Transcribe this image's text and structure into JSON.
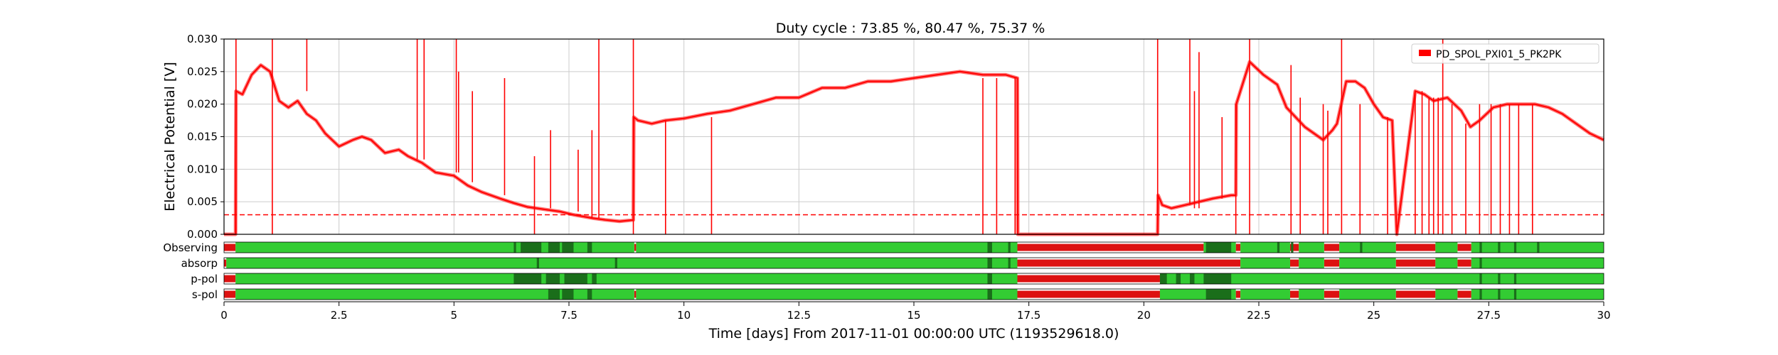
{
  "chart_data": {
    "type": "line",
    "title": "Duty cycle : 73.85 %, 80.47 %, 75.37 %",
    "xlabel": "Time [days] From 2017-11-01 00:00:00 UTC (1193529618.0)",
    "ylabel": "Electrical Potential [V]",
    "xlim": [
      0,
      30
    ],
    "ylim": [
      0,
      0.03
    ],
    "grid": true,
    "legend_position": "top-right",
    "xticks": [
      "0",
      "2.5",
      "5",
      "7.5",
      "10",
      "12.5",
      "15",
      "17.5",
      "20",
      "22.5",
      "25",
      "27.5",
      "30"
    ],
    "yticks": [
      "0.000",
      "0.005",
      "0.010",
      "0.015",
      "0.020",
      "0.025",
      "0.030"
    ],
    "threshold": {
      "value": 0.003,
      "style": "dashed",
      "color": "#ff0000"
    },
    "series": [
      {
        "name": "PD_SPOL_PXI01_5_PK2PK",
        "color": "#ff0000",
        "x": [
          0.0,
          0.25,
          0.26,
          0.4,
          0.6,
          0.8,
          1.0,
          1.2,
          1.4,
          1.6,
          1.8,
          2.0,
          2.2,
          2.5,
          2.8,
          3.0,
          3.2,
          3.5,
          3.8,
          4.0,
          4.3,
          4.6,
          5.0,
          5.3,
          5.6,
          6.0,
          6.3,
          6.6,
          7.0,
          7.3,
          7.6,
          8.0,
          8.3,
          8.6,
          8.9,
          8.91,
          9.0,
          9.3,
          9.6,
          10.0,
          10.5,
          11.0,
          11.5,
          12.0,
          12.5,
          13.0,
          13.5,
          14.0,
          14.5,
          15.0,
          15.5,
          16.0,
          16.5,
          17.0,
          17.25,
          17.26,
          18.0,
          19.0,
          20.0,
          20.3,
          20.31,
          20.4,
          20.6,
          20.9,
          21.2,
          21.5,
          21.9,
          22.0,
          22.01,
          22.3,
          22.6,
          22.9,
          23.1,
          23.3,
          23.5,
          23.7,
          23.9,
          24.1,
          24.2,
          24.4,
          24.6,
          24.8,
          25.0,
          25.2,
          25.4,
          25.5,
          25.9,
          26.1,
          26.3,
          26.6,
          26.9,
          27.1,
          27.3,
          27.6,
          27.9,
          28.2,
          28.5,
          28.8,
          29.1,
          29.4,
          29.7,
          30.0
        ],
        "y": [
          0.0,
          0.0,
          0.022,
          0.0215,
          0.0245,
          0.026,
          0.025,
          0.0205,
          0.0195,
          0.0205,
          0.0185,
          0.0175,
          0.0155,
          0.0135,
          0.0145,
          0.015,
          0.0145,
          0.0125,
          0.013,
          0.012,
          0.011,
          0.0095,
          0.009,
          0.0075,
          0.0065,
          0.0055,
          0.0048,
          0.0042,
          0.0038,
          0.0035,
          0.003,
          0.0025,
          0.0022,
          0.002,
          0.0022,
          0.018,
          0.0175,
          0.017,
          0.0175,
          0.0178,
          0.0185,
          0.019,
          0.02,
          0.021,
          0.021,
          0.0225,
          0.0225,
          0.0235,
          0.0235,
          0.024,
          0.0245,
          0.025,
          0.0245,
          0.0245,
          0.024,
          0.0,
          0.0,
          0.0,
          0.0,
          0.0,
          0.006,
          0.0045,
          0.004,
          0.0045,
          0.005,
          0.0055,
          0.006,
          0.006,
          0.02,
          0.0265,
          0.0245,
          0.023,
          0.0195,
          0.018,
          0.0165,
          0.0155,
          0.0145,
          0.016,
          0.017,
          0.0235,
          0.0235,
          0.0225,
          0.02,
          0.018,
          0.0175,
          0.0,
          0.022,
          0.0215,
          0.0205,
          0.021,
          0.019,
          0.0165,
          0.0175,
          0.0195,
          0.02,
          0.02,
          0.02,
          0.0195,
          0.0185,
          0.017,
          0.0155,
          0.0145
        ]
      }
    ],
    "spike_days": [
      0.26,
      1.05,
      1.8,
      4.2,
      4.35,
      5.05,
      5.1,
      5.4,
      6.1,
      6.75,
      7.1,
      7.7,
      8.0,
      8.15,
      8.9,
      9.6,
      10.6,
      16.5,
      16.8,
      17.2,
      20.3,
      21.0,
      21.1,
      21.2,
      21.7,
      22.0,
      22.3,
      23.2,
      23.4,
      23.9,
      24.0,
      24.3,
      24.7,
      25.3,
      25.9,
      26.05,
      26.2,
      26.3,
      26.4,
      26.5,
      26.7,
      27.0,
      27.3,
      27.55,
      27.75,
      27.95,
      28.15,
      28.45
    ],
    "spike_ranges": [
      [
        0.0,
        0.03
      ],
      [
        0.0,
        0.03
      ],
      [
        0.022,
        0.03
      ],
      [
        0.0115,
        0.03
      ],
      [
        0.0115,
        0.03
      ],
      [
        0.0095,
        0.03
      ],
      [
        0.0095,
        0.025
      ],
      [
        0.008,
        0.022
      ],
      [
        0.006,
        0.024
      ],
      [
        0.0,
        0.012
      ],
      [
        0.004,
        0.016
      ],
      [
        0.0035,
        0.013
      ],
      [
        0.0025,
        0.016
      ],
      [
        0.0025,
        0.03
      ],
      [
        0.0,
        0.03
      ],
      [
        0.0,
        0.0175
      ],
      [
        0.0,
        0.018
      ],
      [
        0.0,
        0.024
      ],
      [
        0.0,
        0.024
      ],
      [
        0.0,
        0.024
      ],
      [
        0.0,
        0.03
      ],
      [
        0.0045,
        0.03
      ],
      [
        0.004,
        0.022
      ],
      [
        0.004,
        0.028
      ],
      [
        0.0055,
        0.018
      ],
      [
        0.0,
        0.02
      ],
      [
        0.0,
        0.03
      ],
      [
        0.0,
        0.026
      ],
      [
        0.0,
        0.021
      ],
      [
        0.0,
        0.02
      ],
      [
        0.0,
        0.019
      ],
      [
        0.0,
        0.03
      ],
      [
        0.0,
        0.02
      ],
      [
        0.0,
        0.018
      ],
      [
        0.0,
        0.022
      ],
      [
        0.0,
        0.022
      ],
      [
        0.0,
        0.021
      ],
      [
        0.0,
        0.021
      ],
      [
        0.0,
        0.021
      ],
      [
        0.0,
        0.03
      ],
      [
        0.0,
        0.02
      ],
      [
        0.0,
        0.017
      ],
      [
        0.0,
        0.02
      ],
      [
        0.0,
        0.02
      ],
      [
        0.0,
        0.02
      ],
      [
        0.0,
        0.02
      ],
      [
        0.0,
        0.02
      ],
      [
        0.0,
        0.02
      ]
    ],
    "segments": [
      {
        "label": "Observing",
        "active": [
          [
            0.25,
            8.92
          ],
          [
            8.96,
            17.25
          ],
          [
            21.3,
            22.0
          ],
          [
            22.1,
            23.18
          ],
          [
            23.37,
            23.92
          ],
          [
            24.25,
            25.48
          ],
          [
            26.34,
            26.82
          ],
          [
            27.12,
            30.0
          ]
        ],
        "dark_ranges": [
          [
            6.3,
            6.35
          ],
          [
            6.45,
            6.9
          ],
          [
            7.05,
            7.3
          ],
          [
            7.35,
            7.6
          ],
          [
            7.9,
            8.0
          ],
          [
            16.6,
            16.7
          ],
          [
            17.05,
            17.1
          ],
          [
            21.35,
            21.9
          ],
          [
            22.9,
            22.95
          ],
          [
            23.2,
            23.25
          ],
          [
            24.7,
            24.75
          ],
          [
            27.3,
            27.35
          ],
          [
            27.7,
            27.75
          ],
          [
            28.05,
            28.1
          ],
          [
            28.55,
            28.6
          ]
        ],
        "off_ranges": [
          [
            0.0,
            0.25
          ],
          [
            8.92,
            8.96
          ],
          [
            17.25,
            21.3
          ],
          [
            22.0,
            22.1
          ],
          [
            23.18,
            23.37
          ],
          [
            23.92,
            24.25
          ],
          [
            25.48,
            26.34
          ],
          [
            26.82,
            27.12
          ]
        ]
      },
      {
        "label": "absorp",
        "active": [
          [
            0.05,
            17.25
          ],
          [
            22.1,
            23.18
          ],
          [
            23.37,
            23.92
          ],
          [
            24.25,
            25.48
          ],
          [
            26.34,
            26.82
          ],
          [
            27.12,
            30.0
          ]
        ],
        "dark_ranges": [
          [
            6.8,
            6.85
          ],
          [
            8.5,
            8.55
          ],
          [
            16.6,
            16.7
          ],
          [
            17.05,
            17.1
          ],
          [
            27.3,
            27.35
          ]
        ],
        "off_ranges": [
          [
            0.0,
            0.05
          ],
          [
            17.25,
            22.1
          ],
          [
            23.18,
            23.37
          ],
          [
            23.92,
            24.25
          ],
          [
            25.48,
            26.34
          ],
          [
            26.82,
            27.12
          ]
        ]
      },
      {
        "label": "p-pol",
        "active": [
          [
            0.25,
            17.25
          ],
          [
            20.35,
            30.0
          ]
        ],
        "dark_ranges": [
          [
            6.3,
            6.9
          ],
          [
            7.0,
            7.3
          ],
          [
            7.4,
            7.9
          ],
          [
            8.0,
            8.1
          ],
          [
            16.6,
            16.7
          ],
          [
            20.35,
            20.5
          ],
          [
            20.7,
            20.8
          ],
          [
            21.0,
            21.1
          ],
          [
            21.3,
            21.9
          ],
          [
            27.3,
            27.35
          ],
          [
            27.7,
            27.75
          ],
          [
            28.05,
            28.1
          ]
        ],
        "off_ranges": [
          [
            0.0,
            0.25
          ],
          [
            17.25,
            20.35
          ]
        ]
      },
      {
        "label": "s-pol",
        "active": [
          [
            0.25,
            8.92
          ],
          [
            8.96,
            17.25
          ],
          [
            20.35,
            22.0
          ],
          [
            22.1,
            23.18
          ],
          [
            23.37,
            23.92
          ],
          [
            24.25,
            25.48
          ],
          [
            26.34,
            26.82
          ],
          [
            27.12,
            30.0
          ]
        ],
        "dark_ranges": [
          [
            7.05,
            7.3
          ],
          [
            7.35,
            7.6
          ],
          [
            7.9,
            8.0
          ],
          [
            16.6,
            16.7
          ],
          [
            21.35,
            21.9
          ],
          [
            27.3,
            27.35
          ],
          [
            27.7,
            27.75
          ],
          [
            28.05,
            28.1
          ]
        ],
        "off_ranges": [
          [
            0.0,
            0.25
          ],
          [
            8.92,
            8.96
          ],
          [
            17.25,
            20.35
          ],
          [
            22.0,
            22.1
          ],
          [
            23.18,
            23.37
          ],
          [
            23.92,
            24.25
          ],
          [
            25.48,
            26.34
          ],
          [
            26.82,
            27.12
          ]
        ]
      }
    ],
    "segment_colors": {
      "active": "#33cc33",
      "dark": "#1a6e1a",
      "off": "#dd1111"
    }
  }
}
